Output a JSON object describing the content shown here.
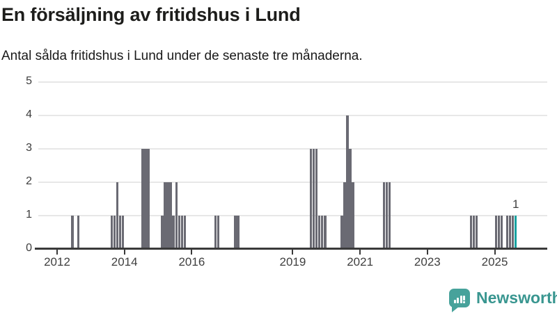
{
  "title": "En försäljning av fritidshus i Lund",
  "subtitle": "Antal sålda fritidshus i Lund under de senaste tre månaderna.",
  "footer": {
    "brand": "Newsworthy"
  },
  "colors": {
    "bar": "#6a6a73",
    "highlight": "#16a2a0",
    "grid": "#e7e7e7",
    "axis": "#3a3a3a",
    "title": "#1d1d1b",
    "logo": "#47a29b",
    "logo_text": "#399690"
  },
  "chart_data": {
    "type": "bar",
    "title": "En försäljning av fritidshus i Lund",
    "subtitle": "Antal sålda fritidshus i Lund under de senaste tre månaderna.",
    "xlabel": "",
    "ylabel": "",
    "ylim": [
      0,
      5
    ],
    "yticks": [
      0,
      1,
      2,
      3,
      4,
      5
    ],
    "xticks": [
      2012,
      2014,
      2016,
      2019,
      2021,
      2023,
      2025
    ],
    "x_domain_years": [
      2011.45,
      2026.55
    ],
    "grid": "horizontal",
    "legend_position": "none",
    "annotation_label": "1",
    "points": [
      {
        "m": "2012-06",
        "v": 1
      },
      {
        "m": "2012-08",
        "v": 1
      },
      {
        "m": "2013-08",
        "v": 1
      },
      {
        "m": "2013-09",
        "v": 1
      },
      {
        "m": "2013-10",
        "v": 2
      },
      {
        "m": "2013-11",
        "v": 1
      },
      {
        "m": "2013-12",
        "v": 1
      },
      {
        "m": "2014-07",
        "v": 3
      },
      {
        "m": "2014-08",
        "v": 3
      },
      {
        "m": "2014-09",
        "v": 3
      },
      {
        "m": "2015-02",
        "v": 1
      },
      {
        "m": "2015-03",
        "v": 2
      },
      {
        "m": "2015-04",
        "v": 2
      },
      {
        "m": "2015-05",
        "v": 2
      },
      {
        "m": "2015-06",
        "v": 1
      },
      {
        "m": "2015-07",
        "v": 2
      },
      {
        "m": "2015-08",
        "v": 1
      },
      {
        "m": "2015-09",
        "v": 1
      },
      {
        "m": "2015-10",
        "v": 1
      },
      {
        "m": "2016-09",
        "v": 1
      },
      {
        "m": "2016-10",
        "v": 1
      },
      {
        "m": "2017-04",
        "v": 1
      },
      {
        "m": "2017-05",
        "v": 1
      },
      {
        "m": "2019-07",
        "v": 3
      },
      {
        "m": "2019-08",
        "v": 3
      },
      {
        "m": "2019-09",
        "v": 3
      },
      {
        "m": "2019-10",
        "v": 1
      },
      {
        "m": "2019-11",
        "v": 1
      },
      {
        "m": "2019-12",
        "v": 1
      },
      {
        "m": "2020-06",
        "v": 1
      },
      {
        "m": "2020-07",
        "v": 2
      },
      {
        "m": "2020-08",
        "v": 4
      },
      {
        "m": "2020-09",
        "v": 3
      },
      {
        "m": "2020-10",
        "v": 2
      },
      {
        "m": "2021-09",
        "v": 2
      },
      {
        "m": "2021-10",
        "v": 2
      },
      {
        "m": "2021-11",
        "v": 2
      },
      {
        "m": "2024-04",
        "v": 1
      },
      {
        "m": "2024-05",
        "v": 1
      },
      {
        "m": "2024-06",
        "v": 1
      },
      {
        "m": "2025-01",
        "v": 1
      },
      {
        "m": "2025-02",
        "v": 1
      },
      {
        "m": "2025-03",
        "v": 1
      },
      {
        "m": "2025-05",
        "v": 1
      },
      {
        "m": "2025-06",
        "v": 1
      },
      {
        "m": "2025-07",
        "v": 1
      },
      {
        "m": "2025-08",
        "v": 1,
        "highlight": true
      }
    ]
  }
}
